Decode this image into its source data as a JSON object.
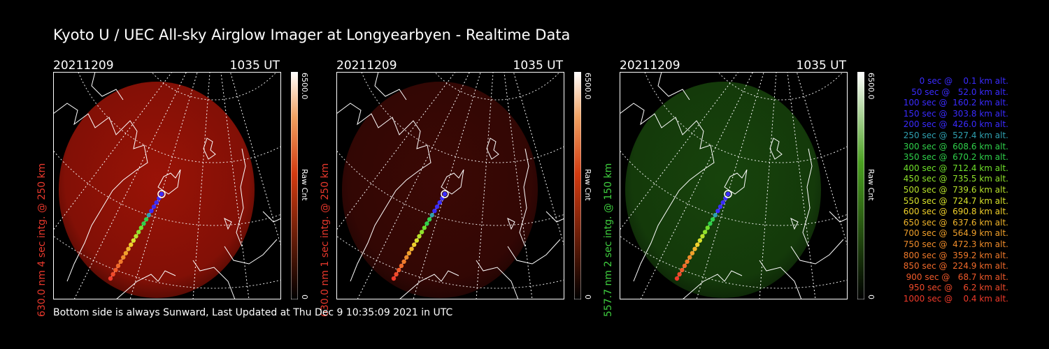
{
  "title": "Kyoto U / UEC All-sky Airglow Imager at Longyearbyen - Realtime Data",
  "footer": "Bottom side is always Sunward, Last Updated at Thu Dec  9 10:35:09 2021 in UTC",
  "panels": [
    {
      "date": "20211209",
      "time": "1035 UT",
      "label": "630.0 nm 4 sec intg. @ 250 km",
      "label_color": "#e8382c",
      "cbar_top": "6500.0",
      "cbar_mid": "Raw Cnt",
      "cbar_bot": "0",
      "glow_color": "#b41608",
      "glow_opacity": 0.85
    },
    {
      "date": "20211209",
      "time": "1035 UT",
      "label": "630.0 nm 1 sec intg. @ 250 km",
      "label_color": "#e8382c",
      "cbar_top": "6500.0",
      "cbar_mid": "Raw Cnt",
      "cbar_bot": "0",
      "glow_color": "#4a0a06",
      "glow_opacity": 0.8
    },
    {
      "date": "20211209",
      "time": "1035 UT",
      "label": "557.7 nm 2 sec intg. @ 150 km",
      "label_color": "#3fcf3f",
      "cbar_top": "6500.0",
      "cbar_mid": "Raw Cnt",
      "cbar_bot": "0",
      "glow_color": "#1f5a10",
      "glow_opacity": 0.75
    }
  ],
  "legend": [
    {
      "text": "   0 sec @    0.1 km alt.",
      "color": "#3a2bff"
    },
    {
      "text": "  50 sec @   52.0 km alt.",
      "color": "#3a2bff"
    },
    {
      "text": " 100 sec @  160.2 km alt.",
      "color": "#3a2bff"
    },
    {
      "text": " 150 sec @  303.8 km alt.",
      "color": "#3a2bff"
    },
    {
      "text": " 200 sec @  426.0 km alt.",
      "color": "#3a2bff"
    },
    {
      "text": " 250 sec @  527.4 km alt.",
      "color": "#2fa0b0"
    },
    {
      "text": " 300 sec @  608.6 km alt.",
      "color": "#2fd04a"
    },
    {
      "text": " 350 sec @  670.2 km alt.",
      "color": "#2fd04a"
    },
    {
      "text": " 400 sec @  712.4 km alt.",
      "color": "#6ee02a"
    },
    {
      "text": " 450 sec @  735.5 km alt.",
      "color": "#8ee22a"
    },
    {
      "text": " 500 sec @  739.6 km alt.",
      "color": "#b8e22a"
    },
    {
      "text": " 550 sec @  724.7 km alt.",
      "color": "#d8e22a"
    },
    {
      "text": " 600 sec @  690.8 km alt.",
      "color": "#f0d02a"
    },
    {
      "text": " 650 sec @  637.6 km alt.",
      "color": "#f0b42a"
    },
    {
      "text": " 700 sec @  564.9 km alt.",
      "color": "#f0a02a"
    },
    {
      "text": " 750 sec @  472.3 km alt.",
      "color": "#f08c2a"
    },
    {
      "text": " 800 sec @  359.2 km alt.",
      "color": "#f07a2a"
    },
    {
      "text": " 850 sec @  224.9 km alt.",
      "color": "#f06a2a"
    },
    {
      "text": " 900 sec @   68.7 km alt.",
      "color": "#f05a2a"
    },
    {
      "text": " 950 sec @    6.2 km alt.",
      "color": "#f04a2a"
    },
    {
      "text": "1000 sec @    0.4 km alt.",
      "color": "#f03a2a"
    }
  ]
}
